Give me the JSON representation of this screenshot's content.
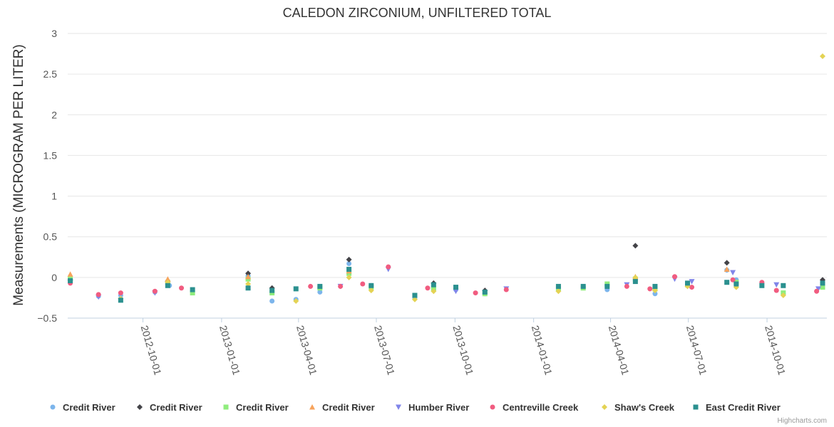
{
  "chart_data": {
    "type": "scatter",
    "title": "CALEDON ZIRCONIUM, UNFILTERED TOTAL",
    "ylabel": "Measurements (MICROGRAM PER LITER)",
    "xlabel": "",
    "ylim": [
      -0.5,
      3
    ],
    "yticks": [
      3,
      2.5,
      2,
      1.5,
      1,
      0.5,
      0,
      -0.5
    ],
    "ytick_labels": [
      "3",
      "2.5",
      "2",
      "1.5",
      "1",
      "0.5",
      "0",
      "−0.5"
    ],
    "xlim": [
      "2012-07-05",
      "2014-12-10"
    ],
    "xticks": [
      "2012-10-01",
      "2013-01-01",
      "2013-04-01",
      "2013-07-01",
      "2013-10-01",
      "2014-01-01",
      "2014-04-01",
      "2014-07-01",
      "2014-10-01"
    ],
    "grid": true,
    "legend_position": "bottom",
    "credits": "Highcharts.com",
    "series": [
      {
        "name": "Credit River",
        "color": "#7cb5ec",
        "marker": "circle",
        "points": [
          [
            "2012-07-08",
            -0.04
          ],
          [
            "2012-08-10",
            -0.23
          ],
          [
            "2012-09-05",
            -0.22
          ],
          [
            "2012-10-15",
            -0.18
          ],
          [
            "2012-11-01",
            -0.1
          ],
          [
            "2012-11-28",
            -0.17
          ],
          [
            "2013-02-01",
            0.02
          ],
          [
            "2013-03-01",
            -0.29
          ],
          [
            "2013-03-29",
            -0.27
          ],
          [
            "2013-04-26",
            -0.18
          ],
          [
            "2013-05-30",
            0.17
          ],
          [
            "2013-06-25",
            -0.1
          ],
          [
            "2013-08-15",
            -0.25
          ],
          [
            "2013-09-06",
            -0.14
          ],
          [
            "2013-10-02",
            -0.15
          ],
          [
            "2013-11-05",
            -0.2
          ],
          [
            "2014-01-30",
            -0.15
          ],
          [
            "2014-02-28",
            -0.12
          ],
          [
            "2014-03-28",
            -0.15
          ],
          [
            "2014-04-30",
            -0.04
          ],
          [
            "2014-05-23",
            -0.2
          ],
          [
            "2014-06-30",
            -0.1
          ],
          [
            "2014-08-15",
            0.09
          ],
          [
            "2014-08-26",
            -0.03
          ],
          [
            "2014-09-25",
            -0.07
          ],
          [
            "2014-10-20",
            -0.2
          ],
          [
            "2014-12-05",
            -0.1
          ]
        ]
      },
      {
        "name": "Credit River",
        "color": "#434348",
        "marker": "diamond",
        "points": [
          [
            "2012-07-08",
            -0.03
          ],
          [
            "2012-10-30",
            -0.05
          ],
          [
            "2013-02-01",
            0.05
          ],
          [
            "2013-03-01",
            -0.13
          ],
          [
            "2013-05-30",
            0.22
          ],
          [
            "2013-09-06",
            -0.07
          ],
          [
            "2013-11-05",
            -0.16
          ],
          [
            "2014-04-30",
            0.39
          ],
          [
            "2014-08-15",
            0.18
          ],
          [
            "2014-12-05",
            -0.03
          ]
        ]
      },
      {
        "name": "Credit River",
        "color": "#90ed7d",
        "marker": "square",
        "points": [
          [
            "2012-07-08",
            -0.02
          ],
          [
            "2012-10-30",
            -0.06
          ],
          [
            "2012-11-28",
            -0.19
          ],
          [
            "2013-02-01",
            -0.02
          ],
          [
            "2013-03-01",
            -0.19
          ],
          [
            "2013-04-26",
            -0.13
          ],
          [
            "2013-05-30",
            0.05
          ],
          [
            "2013-06-25",
            -0.12
          ],
          [
            "2013-09-06",
            -0.14
          ],
          [
            "2013-11-05",
            -0.2
          ],
          [
            "2014-01-30",
            -0.14
          ],
          [
            "2014-02-28",
            -0.13
          ],
          [
            "2014-03-28",
            -0.08
          ],
          [
            "2014-04-30",
            -0.02
          ],
          [
            "2014-05-23",
            -0.14
          ],
          [
            "2014-06-30",
            -0.09
          ],
          [
            "2014-08-26",
            -0.06
          ],
          [
            "2014-10-20",
            -0.19
          ],
          [
            "2014-12-05",
            -0.12
          ]
        ]
      },
      {
        "name": "Credit River",
        "color": "#f7a35c",
        "marker": "triangle",
        "points": [
          [
            "2012-07-08",
            0.04
          ],
          [
            "2012-10-30",
            -0.02
          ],
          [
            "2013-02-01",
            0.01
          ],
          [
            "2013-05-30",
            0.08
          ],
          [
            "2014-04-30",
            0.01
          ],
          [
            "2014-08-15",
            0.1
          ]
        ]
      },
      {
        "name": "Humber River",
        "color": "#8085e9",
        "marker": "triangle-down",
        "points": [
          [
            "2012-08-10",
            -0.24
          ],
          [
            "2012-10-15",
            -0.19
          ],
          [
            "2013-05-20",
            -0.11
          ],
          [
            "2013-07-15",
            0.1
          ],
          [
            "2013-10-02",
            -0.17
          ],
          [
            "2013-11-30",
            -0.14
          ],
          [
            "2014-04-20",
            -0.09
          ],
          [
            "2014-06-15",
            -0.02
          ],
          [
            "2014-07-05",
            -0.05
          ],
          [
            "2014-08-22",
            0.06
          ],
          [
            "2014-10-12",
            -0.09
          ],
          [
            "2014-11-30",
            -0.14
          ]
        ]
      },
      {
        "name": "Centreville Creek",
        "color": "#f15c80",
        "marker": "circle",
        "points": [
          [
            "2012-07-08",
            -0.07
          ],
          [
            "2012-08-10",
            -0.21
          ],
          [
            "2012-09-05",
            -0.19
          ],
          [
            "2012-10-15",
            -0.17
          ],
          [
            "2012-11-15",
            -0.13
          ],
          [
            "2013-04-15",
            -0.11
          ],
          [
            "2013-05-20",
            -0.11
          ],
          [
            "2013-06-15",
            -0.08
          ],
          [
            "2013-07-15",
            0.13
          ],
          [
            "2013-08-30",
            -0.13
          ],
          [
            "2013-10-25",
            -0.19
          ],
          [
            "2013-11-30",
            -0.15
          ],
          [
            "2014-04-20",
            -0.11
          ],
          [
            "2014-05-17",
            -0.14
          ],
          [
            "2014-06-15",
            0.01
          ],
          [
            "2014-07-05",
            -0.12
          ],
          [
            "2014-08-22",
            -0.03
          ],
          [
            "2014-09-25",
            -0.06
          ],
          [
            "2014-10-12",
            -0.16
          ],
          [
            "2014-11-28",
            -0.17
          ]
        ]
      },
      {
        "name": "Shaw's Creek",
        "color": "#e4d354",
        "marker": "diamond",
        "points": [
          [
            "2012-09-05",
            -0.26
          ],
          [
            "2012-10-30",
            -0.06
          ],
          [
            "2013-02-01",
            -0.08
          ],
          [
            "2013-03-29",
            -0.29
          ],
          [
            "2013-05-30",
            0.0
          ],
          [
            "2013-06-25",
            -0.16
          ],
          [
            "2013-08-15",
            -0.27
          ],
          [
            "2013-09-06",
            -0.17
          ],
          [
            "2014-01-30",
            -0.17
          ],
          [
            "2014-04-30",
            0.0
          ],
          [
            "2014-05-23",
            -0.16
          ],
          [
            "2014-06-30",
            -0.11
          ],
          [
            "2014-08-26",
            -0.12
          ],
          [
            "2014-10-20",
            -0.22
          ],
          [
            "2014-12-05",
            2.72
          ]
        ]
      },
      {
        "name": "East Credit River",
        "color": "#2b908f",
        "marker": "square",
        "points": [
          [
            "2012-07-08",
            -0.04
          ],
          [
            "2012-09-05",
            -0.28
          ],
          [
            "2012-10-30",
            -0.1
          ],
          [
            "2012-11-28",
            -0.15
          ],
          [
            "2013-02-01",
            -0.13
          ],
          [
            "2013-03-01",
            -0.16
          ],
          [
            "2013-03-29",
            -0.14
          ],
          [
            "2013-04-26",
            -0.11
          ],
          [
            "2013-05-30",
            0.1
          ],
          [
            "2013-06-25",
            -0.1
          ],
          [
            "2013-08-15",
            -0.22
          ],
          [
            "2013-09-06",
            -0.09
          ],
          [
            "2013-10-02",
            -0.12
          ],
          [
            "2013-11-05",
            -0.18
          ],
          [
            "2014-01-30",
            -0.11
          ],
          [
            "2014-02-28",
            -0.11
          ],
          [
            "2014-03-28",
            -0.11
          ],
          [
            "2014-04-30",
            -0.05
          ],
          [
            "2014-05-23",
            -0.11
          ],
          [
            "2014-06-30",
            -0.07
          ],
          [
            "2014-08-15",
            -0.06
          ],
          [
            "2014-08-26",
            -0.08
          ],
          [
            "2014-09-25",
            -0.1
          ],
          [
            "2014-10-20",
            -0.1
          ],
          [
            "2014-12-05",
            -0.07
          ]
        ]
      }
    ]
  }
}
